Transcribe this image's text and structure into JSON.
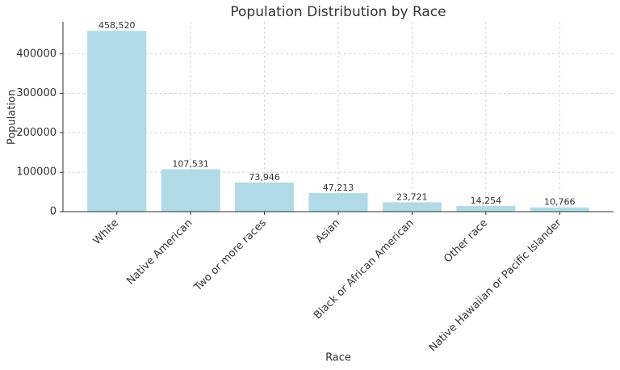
{
  "chart_data": {
    "type": "bar",
    "title": "Population Distribution by Race",
    "x_label": "Race",
    "y_label": "Population",
    "categories": [
      "White",
      "Native American",
      "Two or more races",
      "Asian",
      "Black or African American",
      "Other race",
      "Native Hawaiian or Pacific Islander"
    ],
    "values": [
      458520,
      107531,
      73946,
      47213,
      23721,
      14254,
      10766
    ],
    "value_labels": [
      "458,520",
      "107,531",
      "73,946",
      "47,213",
      "23,721",
      "14,254",
      "10,766"
    ],
    "color": "#add8e6",
    "ylim": [
      0,
      481446
    ],
    "yticks": [
      0,
      100000,
      200000,
      300000,
      400000
    ],
    "grid": true
  }
}
